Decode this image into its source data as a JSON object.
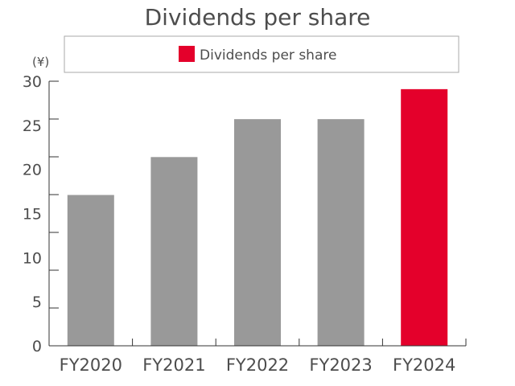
{
  "chart_data": {
    "type": "bar",
    "title": "Dividends per share",
    "unit_label": "(¥)",
    "categories": [
      "FY2020",
      "FY2021",
      "FY2022",
      "FY2023",
      "FY2024"
    ],
    "series": [
      {
        "name": "Dividends per share",
        "values": [
          17.1,
          21.4,
          25.7,
          25.7,
          29.1
        ]
      }
    ],
    "bar_colors": [
      "#999999",
      "#999999",
      "#999999",
      "#999999",
      "#e4002b"
    ],
    "legend_color": "#e4002b",
    "ylim": [
      0,
      30
    ],
    "yticks": [
      0,
      5,
      10,
      15,
      20,
      25,
      30
    ],
    "legend_position": "top",
    "grid": false
  }
}
